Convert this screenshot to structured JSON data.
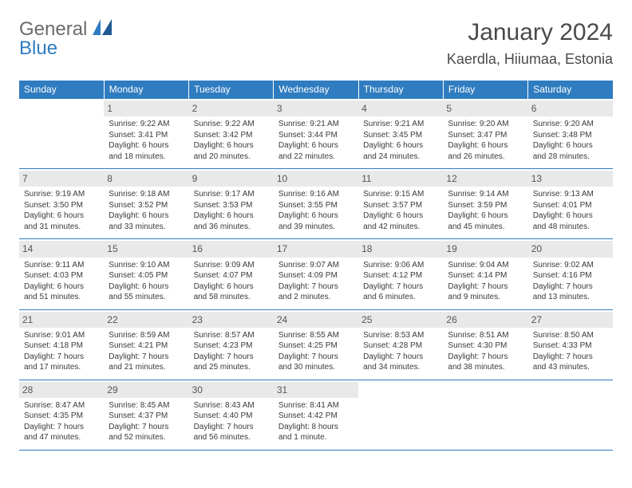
{
  "brand": {
    "word1": "General",
    "word2": "Blue"
  },
  "header": {
    "title": "January 2024",
    "location": "Kaerdla, Hiiumaa, Estonia"
  },
  "colors": {
    "accent": "#2f7cc0",
    "day_header_bg": "#e9e9e9",
    "text": "#3a3a3a",
    "white": "#ffffff"
  },
  "typography": {
    "title_fontsize_pt": 22,
    "location_fontsize_pt": 13,
    "dayheader_fontsize_pt": 9,
    "cell_fontsize_pt": 7
  },
  "calendar": {
    "dayHeaders": [
      "Sunday",
      "Monday",
      "Tuesday",
      "Wednesday",
      "Thursday",
      "Friday",
      "Saturday"
    ],
    "weeks": [
      [
        null,
        {
          "n": "1",
          "sr": "Sunrise: 9:22 AM",
          "ss": "Sunset: 3:41 PM",
          "d1": "Daylight: 6 hours",
          "d2": "and 18 minutes."
        },
        {
          "n": "2",
          "sr": "Sunrise: 9:22 AM",
          "ss": "Sunset: 3:42 PM",
          "d1": "Daylight: 6 hours",
          "d2": "and 20 minutes."
        },
        {
          "n": "3",
          "sr": "Sunrise: 9:21 AM",
          "ss": "Sunset: 3:44 PM",
          "d1": "Daylight: 6 hours",
          "d2": "and 22 minutes."
        },
        {
          "n": "4",
          "sr": "Sunrise: 9:21 AM",
          "ss": "Sunset: 3:45 PM",
          "d1": "Daylight: 6 hours",
          "d2": "and 24 minutes."
        },
        {
          "n": "5",
          "sr": "Sunrise: 9:20 AM",
          "ss": "Sunset: 3:47 PM",
          "d1": "Daylight: 6 hours",
          "d2": "and 26 minutes."
        },
        {
          "n": "6",
          "sr": "Sunrise: 9:20 AM",
          "ss": "Sunset: 3:48 PM",
          "d1": "Daylight: 6 hours",
          "d2": "and 28 minutes."
        }
      ],
      [
        {
          "n": "7",
          "sr": "Sunrise: 9:19 AM",
          "ss": "Sunset: 3:50 PM",
          "d1": "Daylight: 6 hours",
          "d2": "and 31 minutes."
        },
        {
          "n": "8",
          "sr": "Sunrise: 9:18 AM",
          "ss": "Sunset: 3:52 PM",
          "d1": "Daylight: 6 hours",
          "d2": "and 33 minutes."
        },
        {
          "n": "9",
          "sr": "Sunrise: 9:17 AM",
          "ss": "Sunset: 3:53 PM",
          "d1": "Daylight: 6 hours",
          "d2": "and 36 minutes."
        },
        {
          "n": "10",
          "sr": "Sunrise: 9:16 AM",
          "ss": "Sunset: 3:55 PM",
          "d1": "Daylight: 6 hours",
          "d2": "and 39 minutes."
        },
        {
          "n": "11",
          "sr": "Sunrise: 9:15 AM",
          "ss": "Sunset: 3:57 PM",
          "d1": "Daylight: 6 hours",
          "d2": "and 42 minutes."
        },
        {
          "n": "12",
          "sr": "Sunrise: 9:14 AM",
          "ss": "Sunset: 3:59 PM",
          "d1": "Daylight: 6 hours",
          "d2": "and 45 minutes."
        },
        {
          "n": "13",
          "sr": "Sunrise: 9:13 AM",
          "ss": "Sunset: 4:01 PM",
          "d1": "Daylight: 6 hours",
          "d2": "and 48 minutes."
        }
      ],
      [
        {
          "n": "14",
          "sr": "Sunrise: 9:11 AM",
          "ss": "Sunset: 4:03 PM",
          "d1": "Daylight: 6 hours",
          "d2": "and 51 minutes."
        },
        {
          "n": "15",
          "sr": "Sunrise: 9:10 AM",
          "ss": "Sunset: 4:05 PM",
          "d1": "Daylight: 6 hours",
          "d2": "and 55 minutes."
        },
        {
          "n": "16",
          "sr": "Sunrise: 9:09 AM",
          "ss": "Sunset: 4:07 PM",
          "d1": "Daylight: 6 hours",
          "d2": "and 58 minutes."
        },
        {
          "n": "17",
          "sr": "Sunrise: 9:07 AM",
          "ss": "Sunset: 4:09 PM",
          "d1": "Daylight: 7 hours",
          "d2": "and 2 minutes."
        },
        {
          "n": "18",
          "sr": "Sunrise: 9:06 AM",
          "ss": "Sunset: 4:12 PM",
          "d1": "Daylight: 7 hours",
          "d2": "and 6 minutes."
        },
        {
          "n": "19",
          "sr": "Sunrise: 9:04 AM",
          "ss": "Sunset: 4:14 PM",
          "d1": "Daylight: 7 hours",
          "d2": "and 9 minutes."
        },
        {
          "n": "20",
          "sr": "Sunrise: 9:02 AM",
          "ss": "Sunset: 4:16 PM",
          "d1": "Daylight: 7 hours",
          "d2": "and 13 minutes."
        }
      ],
      [
        {
          "n": "21",
          "sr": "Sunrise: 9:01 AM",
          "ss": "Sunset: 4:18 PM",
          "d1": "Daylight: 7 hours",
          "d2": "and 17 minutes."
        },
        {
          "n": "22",
          "sr": "Sunrise: 8:59 AM",
          "ss": "Sunset: 4:21 PM",
          "d1": "Daylight: 7 hours",
          "d2": "and 21 minutes."
        },
        {
          "n": "23",
          "sr": "Sunrise: 8:57 AM",
          "ss": "Sunset: 4:23 PM",
          "d1": "Daylight: 7 hours",
          "d2": "and 25 minutes."
        },
        {
          "n": "24",
          "sr": "Sunrise: 8:55 AM",
          "ss": "Sunset: 4:25 PM",
          "d1": "Daylight: 7 hours",
          "d2": "and 30 minutes."
        },
        {
          "n": "25",
          "sr": "Sunrise: 8:53 AM",
          "ss": "Sunset: 4:28 PM",
          "d1": "Daylight: 7 hours",
          "d2": "and 34 minutes."
        },
        {
          "n": "26",
          "sr": "Sunrise: 8:51 AM",
          "ss": "Sunset: 4:30 PM",
          "d1": "Daylight: 7 hours",
          "d2": "and 38 minutes."
        },
        {
          "n": "27",
          "sr": "Sunrise: 8:50 AM",
          "ss": "Sunset: 4:33 PM",
          "d1": "Daylight: 7 hours",
          "d2": "and 43 minutes."
        }
      ],
      [
        {
          "n": "28",
          "sr": "Sunrise: 8:47 AM",
          "ss": "Sunset: 4:35 PM",
          "d1": "Daylight: 7 hours",
          "d2": "and 47 minutes."
        },
        {
          "n": "29",
          "sr": "Sunrise: 8:45 AM",
          "ss": "Sunset: 4:37 PM",
          "d1": "Daylight: 7 hours",
          "d2": "and 52 minutes."
        },
        {
          "n": "30",
          "sr": "Sunrise: 8:43 AM",
          "ss": "Sunset: 4:40 PM",
          "d1": "Daylight: 7 hours",
          "d2": "and 56 minutes."
        },
        {
          "n": "31",
          "sr": "Sunrise: 8:41 AM",
          "ss": "Sunset: 4:42 PM",
          "d1": "Daylight: 8 hours",
          "d2": "and 1 minute."
        },
        null,
        null,
        null
      ]
    ]
  }
}
